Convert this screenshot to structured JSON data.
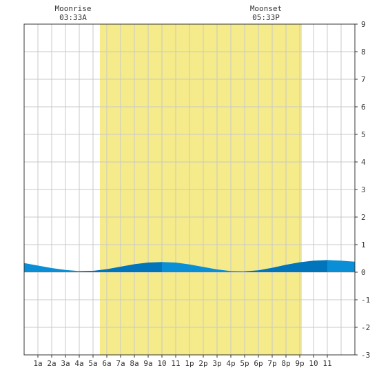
{
  "chart_data": {
    "type": "area",
    "title": "",
    "xlabel": "",
    "ylabel": "",
    "ylim": [
      -3,
      9
    ],
    "xlim": [
      0,
      24
    ],
    "y_ticks": [
      -3,
      -2,
      -1,
      0,
      1,
      2,
      3,
      4,
      5,
      6,
      7,
      8,
      9
    ],
    "x_tick_labels": [
      "1a",
      "2a",
      "3a",
      "4a",
      "5a",
      "6a",
      "7a",
      "8a",
      "9a",
      "10",
      "11",
      "1p",
      "2p",
      "3p",
      "4p",
      "5p",
      "6p",
      "7p",
      "8p",
      "9p",
      "10",
      "11"
    ],
    "grid": true,
    "moonrise": {
      "label": "Moonrise",
      "time": "03:33A",
      "hour": 3.55
    },
    "moonset": {
      "label": "Moonset",
      "time": "05:33P",
      "hour": 17.55
    },
    "daylight": {
      "start_hour": 5.5,
      "end_hour": 20.15
    },
    "series": [
      {
        "x": [
          0,
          1,
          2,
          3,
          4,
          5,
          6,
          7,
          8,
          9,
          10,
          11,
          12,
          13,
          14,
          15,
          16,
          17,
          18,
          19,
          20,
          21,
          22,
          23,
          24
        ],
        "values": [
          0.33,
          0.24,
          0.15,
          0.08,
          0.04,
          0.05,
          0.11,
          0.2,
          0.29,
          0.35,
          0.37,
          0.35,
          0.28,
          0.19,
          0.1,
          0.04,
          0.03,
          0.07,
          0.16,
          0.27,
          0.36,
          0.42,
          0.44,
          0.42,
          0.38
        ]
      }
    ],
    "colors": {
      "background": "#ffffff",
      "daylight": "#f5eb8a",
      "grid": "#c8c8c8",
      "axis": "#333333",
      "tide_light": "#0a8fd6",
      "tide_dark": "#0075bb"
    }
  }
}
